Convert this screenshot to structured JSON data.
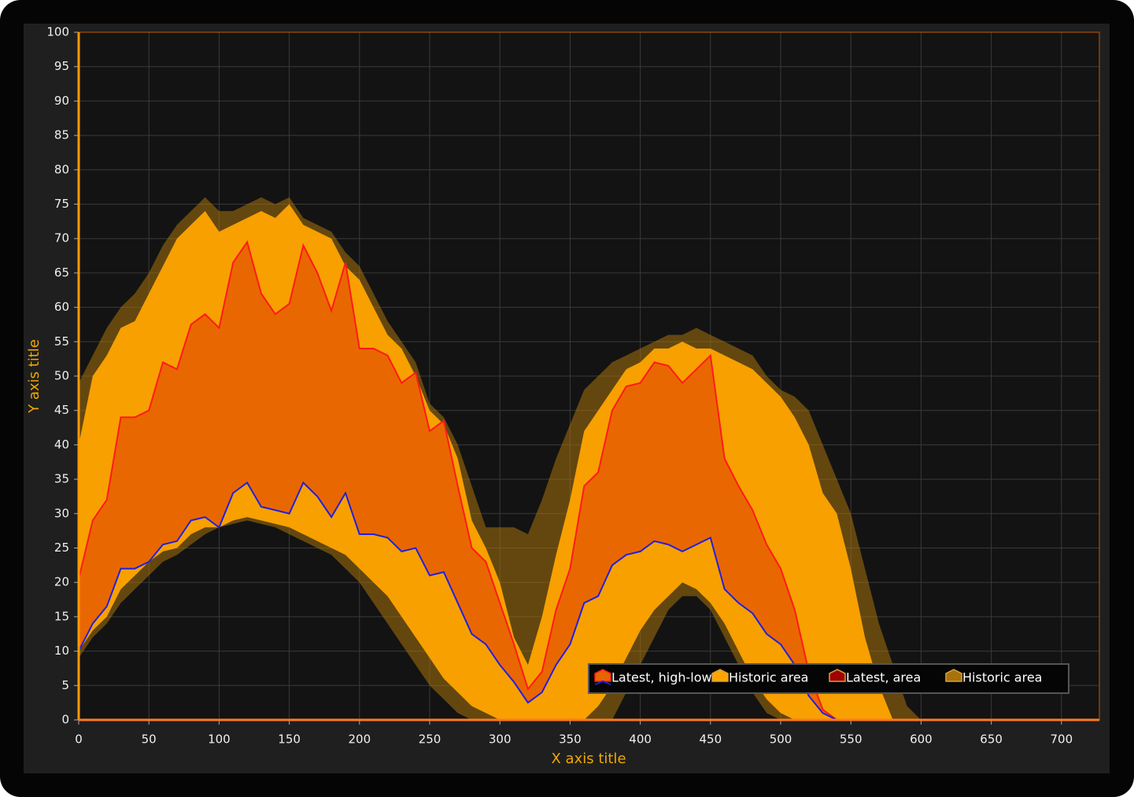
{
  "chart_data": {
    "type": "area-band",
    "xlabel": "X axis title",
    "ylabel": "Y axis title",
    "xlim": [
      0,
      727
    ],
    "ylim": [
      0,
      100
    ],
    "xticks": [
      0,
      50,
      100,
      150,
      200,
      250,
      300,
      350,
      400,
      450,
      500,
      550,
      600,
      650,
      700
    ],
    "yticks": [
      0,
      5,
      10,
      15,
      20,
      25,
      30,
      35,
      40,
      45,
      50,
      55,
      60,
      65,
      70,
      75,
      80,
      85,
      90,
      95,
      100
    ],
    "grid": true,
    "legend": "bottom-right",
    "x": [
      0,
      10,
      20,
      30,
      40,
      50,
      60,
      70,
      80,
      90,
      100,
      110,
      120,
      130,
      140,
      150,
      160,
      170,
      180,
      190,
      200,
      210,
      220,
      230,
      240,
      250,
      260,
      270,
      280,
      290,
      300,
      310,
      320,
      330,
      340,
      350,
      360,
      370,
      380,
      390,
      400,
      410,
      420,
      430,
      440,
      450,
      460,
      470,
      480,
      490,
      500,
      510,
      520,
      530,
      540,
      550,
      560,
      570,
      580,
      590,
      600,
      610,
      620,
      630,
      640,
      650,
      660,
      670,
      680,
      690,
      700,
      710,
      720
    ],
    "series": [
      {
        "name": "Latest, high-low",
        "color": "#e86400",
        "high_color": "#ff1a1a",
        "low_color": "#2020e0",
        "high": [
          20.5,
          29,
          32,
          44,
          44,
          45,
          52,
          51,
          57.5,
          59,
          57,
          66.5,
          69.5,
          62,
          59,
          60.5,
          69,
          65,
          59.5,
          66.5,
          54,
          54,
          53,
          49,
          50.5,
          42,
          43.5,
          34,
          25,
          23,
          17,
          11,
          4.5,
          7,
          16,
          22,
          34,
          36,
          45,
          48.5,
          49,
          52,
          51.5,
          49,
          51,
          53,
          38,
          34,
          30.5,
          25.5,
          22,
          16,
          7,
          1.5,
          0,
          0,
          0,
          0,
          0,
          0,
          0,
          0,
          0,
          0,
          0,
          0,
          0,
          0,
          0,
          0,
          0,
          0,
          0
        ],
        "low": [
          10,
          14,
          16.5,
          22,
          22,
          23,
          25.5,
          26,
          29,
          29.5,
          28,
          33,
          34.5,
          31,
          30.5,
          30,
          34.5,
          32.5,
          29.5,
          33,
          27,
          27,
          26.5,
          24.5,
          25,
          21,
          21.5,
          17,
          12.5,
          11,
          8,
          5.5,
          2.5,
          4,
          8,
          11,
          17,
          18,
          22.5,
          24,
          24.5,
          26,
          25.5,
          24.5,
          25.5,
          26.5,
          19,
          17,
          15.5,
          12.5,
          11,
          8,
          3.5,
          1,
          0,
          0,
          0,
          0,
          0,
          0,
          0,
          0,
          0,
          0,
          0,
          0,
          0,
          0,
          0,
          0,
          0,
          0,
          0
        ]
      },
      {
        "name": "Historic area",
        "color": "#ffa500",
        "high": [
          40,
          50,
          53,
          57,
          58,
          62,
          66,
          70,
          72,
          74,
          71,
          72,
          73,
          74,
          73,
          75,
          72,
          71,
          70,
          66,
          64,
          60,
          56,
          54,
          50,
          45,
          43,
          38,
          29,
          25,
          20,
          12,
          8,
          15,
          24,
          32,
          42,
          45,
          48,
          51,
          52,
          54,
          54,
          55,
          54,
          54,
          53,
          52,
          51,
          49,
          47,
          44,
          40,
          33,
          30,
          22,
          12,
          5,
          0,
          0,
          0,
          0,
          0,
          0,
          0,
          0,
          0,
          0,
          0,
          0,
          0,
          0,
          0
        ],
        "low": [
          10,
          13,
          15,
          19,
          21,
          23,
          24.5,
          25,
          27,
          28,
          28,
          29,
          29.5,
          29,
          28.5,
          28,
          27,
          26,
          25,
          24,
          22,
          20,
          18,
          15,
          12,
          9,
          6,
          4,
          2,
          1,
          0,
          0,
          0,
          0,
          0,
          0,
          0,
          2,
          5,
          9,
          13,
          16,
          18,
          20,
          19,
          17,
          14,
          10,
          6,
          3,
          1,
          0,
          0,
          0,
          0,
          0,
          0,
          0,
          0,
          0,
          0,
          0,
          0,
          0,
          0,
          0,
          0,
          0,
          0,
          0,
          0,
          0,
          0
        ]
      },
      {
        "name": "Latest, area",
        "color": "#a00000"
      },
      {
        "name": "Historic area",
        "color": "#a8730c",
        "high": [
          49,
          53,
          57,
          60,
          62,
          65,
          69,
          72,
          74,
          76,
          74,
          74,
          75,
          76,
          75,
          76,
          73,
          72,
          71,
          68,
          66,
          62,
          58,
          55,
          52,
          46,
          44,
          40,
          34,
          28,
          28,
          28,
          27,
          32,
          38,
          43,
          48,
          50,
          52,
          53,
          54,
          55,
          56,
          56,
          57,
          56,
          55,
          54,
          53,
          50,
          48,
          47,
          45,
          40,
          35,
          30,
          22,
          14,
          8,
          2,
          0,
          0,
          0,
          0,
          0,
          0,
          0,
          0,
          0,
          0,
          0,
          0,
          0
        ],
        "low": [
          9,
          12,
          14,
          17,
          19,
          21,
          23,
          24,
          25.5,
          27,
          28,
          28.5,
          29,
          28.5,
          28,
          27,
          26,
          25,
          24,
          22,
          20,
          17,
          14,
          11,
          8,
          5,
          3,
          1,
          0,
          0,
          0,
          0,
          0,
          0,
          0,
          0,
          0,
          0,
          0,
          4,
          8,
          12,
          16,
          18,
          18,
          16,
          12,
          8,
          4,
          1,
          0,
          0,
          0,
          0,
          0,
          0,
          0,
          0,
          0,
          0,
          0,
          0,
          0,
          0,
          0,
          0,
          0,
          0,
          0,
          0,
          0,
          0,
          0
        ]
      }
    ]
  }
}
